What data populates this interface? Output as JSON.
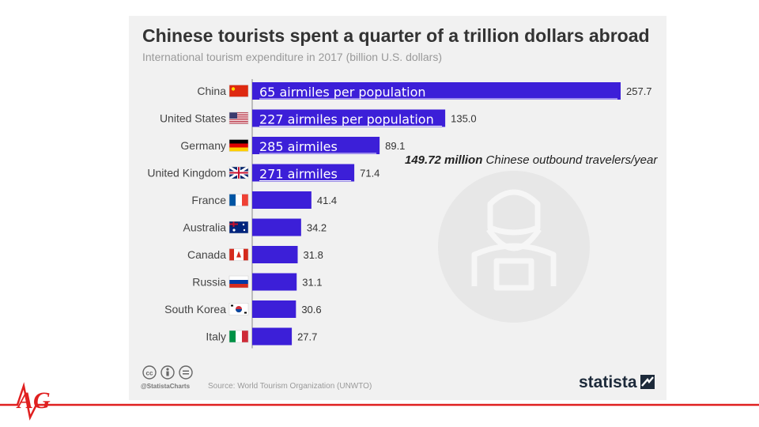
{
  "chart_data": {
    "type": "bar",
    "orientation": "horizontal",
    "title": "Chinese tourists spent a quarter of a trillion dollars abroad",
    "subtitle": "International tourism expenditure in 2017 (billion U.S. dollars)",
    "categories": [
      "China",
      "United States",
      "Germany",
      "United Kingdom",
      "France",
      "Australia",
      "Canada",
      "Russia",
      "South Korea",
      "Italy"
    ],
    "values": [
      257.7,
      135.0,
      89.1,
      71.4,
      41.4,
      34.2,
      31.8,
      31.1,
      30.6,
      27.7
    ],
    "value_labels": [
      "257.7",
      "135.0",
      "89.1",
      "71.4",
      "41.4",
      "34.2",
      "31.8",
      "31.1",
      "30.6",
      "27.7"
    ],
    "bar_annotations": [
      "65 airmiles per population",
      "227 airmiles per population",
      "285 airmiles",
      "271 airmiles",
      "",
      "",
      "",
      "",
      "",
      ""
    ],
    "bar_color": "#3c1fd8",
    "xlim": [
      0,
      257.7
    ],
    "grid": false,
    "legend": "none"
  },
  "annotation": {
    "highlight": "149.72 million",
    "rest": " Chinese outbound travelers/year"
  },
  "footer": {
    "handle": "@StatistaCharts",
    "source": "Source: World Tourism Organization (UNWTO)",
    "brand": "statista"
  },
  "logo": {
    "letters": "AG",
    "color": "#e02020"
  },
  "icons": [
    "cc-icon",
    "by-icon",
    "nd-icon",
    "brand-mark-icon",
    "traveler-icon",
    "flag-icons"
  ]
}
